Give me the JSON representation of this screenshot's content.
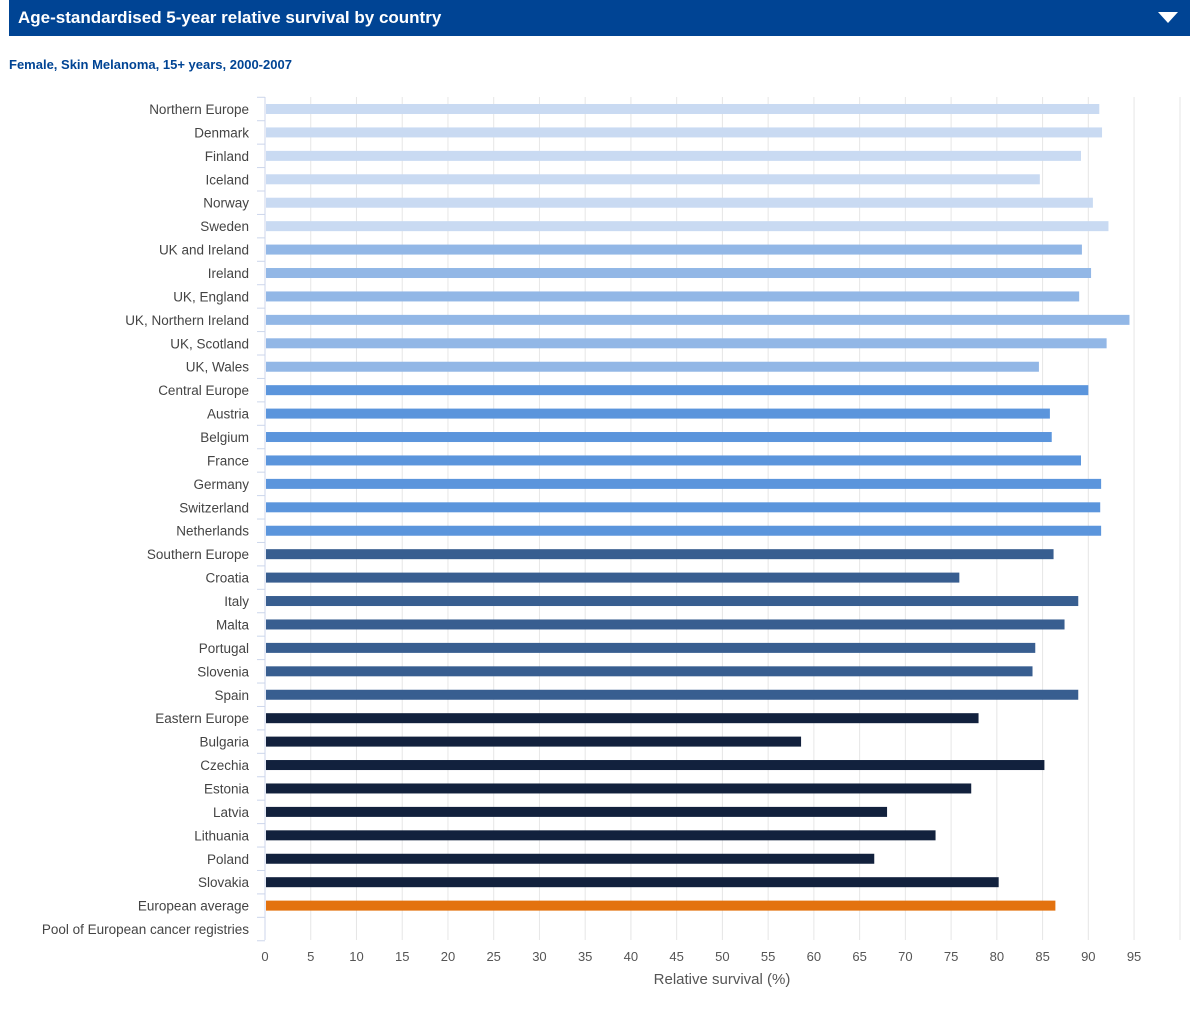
{
  "header": {
    "title": "Age-standardised 5-year relative survival by country",
    "toggle_icon": "chevron-down-icon"
  },
  "subtitle": "Female, Skin Melanoma, 15+ years, 2000-2007",
  "colors": {
    "northern": "#c9daf2",
    "uk_ireland": "#92b7e6",
    "central": "#5b95dc",
    "southern": "#385e90",
    "eastern": "#12213d",
    "average": "#e3720f"
  },
  "chart_data": {
    "type": "bar",
    "orientation": "horizontal",
    "xlabel": "Relative survival (%)",
    "xlim": [
      0,
      100
    ],
    "xticks": [
      0,
      5,
      10,
      15,
      20,
      25,
      30,
      35,
      40,
      45,
      50,
      55,
      60,
      65,
      70,
      75,
      80,
      85,
      90,
      95
    ],
    "grid": true,
    "categories": [
      "Northern Europe",
      "Denmark",
      "Finland",
      "Iceland",
      "Norway",
      "Sweden",
      "UK and Ireland",
      "Ireland",
      "UK, England",
      "UK, Northern Ireland",
      "UK, Scotland",
      "UK, Wales",
      "Central Europe",
      "Austria",
      "Belgium",
      "France",
      "Germany",
      "Switzerland",
      "Netherlands",
      "Southern Europe",
      "Croatia",
      "Italy",
      "Malta",
      "Portugal",
      "Slovenia",
      "Spain",
      "Eastern Europe",
      "Bulgaria",
      "Czechia",
      "Estonia",
      "Latvia",
      "Lithuania",
      "Poland",
      "Slovakia",
      "European average",
      "Pool of European cancer registries"
    ],
    "values": [
      91.2,
      91.5,
      89.2,
      84.7,
      90.5,
      92.2,
      89.3,
      90.3,
      89.0,
      94.5,
      92.0,
      84.6,
      90.0,
      85.8,
      86.0,
      89.2,
      91.4,
      91.3,
      91.4,
      86.2,
      75.9,
      88.9,
      87.4,
      84.2,
      83.9,
      88.9,
      78.0,
      58.6,
      85.2,
      77.2,
      68.0,
      73.3,
      66.6,
      80.2,
      86.4,
      null
    ],
    "groups": [
      "northern",
      "northern",
      "northern",
      "northern",
      "northern",
      "northern",
      "uk_ireland",
      "uk_ireland",
      "uk_ireland",
      "uk_ireland",
      "uk_ireland",
      "uk_ireland",
      "central",
      "central",
      "central",
      "central",
      "central",
      "central",
      "central",
      "southern",
      "southern",
      "southern",
      "southern",
      "southern",
      "southern",
      "southern",
      "eastern",
      "eastern",
      "eastern",
      "eastern",
      "eastern",
      "eastern",
      "eastern",
      "eastern",
      "average",
      "average"
    ]
  }
}
